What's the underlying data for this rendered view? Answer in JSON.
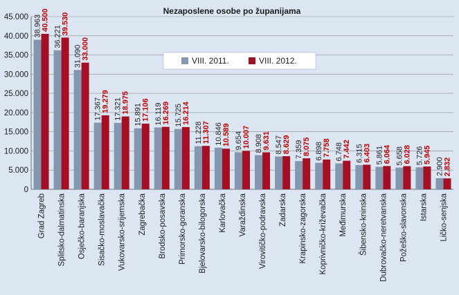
{
  "chart_data": {
    "type": "bar",
    "title": "Nezaposlene osobe po županijama",
    "xlabel": "",
    "ylabel": "",
    "ylim": [
      0,
      45000
    ],
    "y_ticks": [
      "0",
      "5.000",
      "10.000",
      "15.000",
      "20.000",
      "25.000",
      "30.000",
      "35.000",
      "40.000",
      "45.000"
    ],
    "y_tick_values": [
      0,
      5000,
      10000,
      15000,
      20000,
      25000,
      30000,
      35000,
      40000,
      45000
    ],
    "grid": true,
    "legend_position": "top-center",
    "colors": {
      "series_2011": "#8497b0",
      "series_2012": "#a50f23",
      "label_2011": "#1f1f1f",
      "label_2012": "#c00000",
      "background": "#dce6f2"
    },
    "categories": [
      "Grad Zagreb",
      "Splitsko-dalmatinska",
      "Osječko-baranjska",
      "Sisačko-moslavačka",
      "Vukovarsko-srijemska",
      "Zagrebačka",
      "Brodsko-posavska",
      "Primorsko-goranska",
      "Bjelovarsko-bilogorska",
      "Karlovačka",
      "Varaždinska",
      "Virovitičko-podravska",
      "Zadarska",
      "Krapinsko-zagorska",
      "Koprivničko-križevačka",
      "Međimurska",
      "Šibensko-kninska",
      "Dubrovačko-neretvanska",
      "Požeško-slavonska",
      "Istarska",
      "Ličko-senjska"
    ],
    "series": [
      {
        "name": "VIII. 2011.",
        "values": [
          38963,
          36221,
          31090,
          17367,
          17321,
          15891,
          16119,
          15725,
          11228,
          10846,
          9654,
          8908,
          8547,
          7359,
          6898,
          6748,
          6315,
          5861,
          5658,
          5726,
          2900
        ],
        "labels": [
          "38.963",
          "36.221",
          "31.090",
          "17.367",
          "17.321",
          "15.891",
          "16.119",
          "15.725",
          "11.228",
          "10.846",
          "9.654",
          "8.908",
          "8.547",
          "7.359",
          "6.898",
          "6.748",
          "6.315",
          "5.861",
          "5.658",
          "5.726",
          "2.900"
        ]
      },
      {
        "name": "VIII. 2012.",
        "values": [
          40500,
          39530,
          33000,
          19279,
          18975,
          17106,
          16269,
          16214,
          11307,
          10589,
          10007,
          9631,
          8629,
          8075,
          7758,
          7442,
          6403,
          6064,
          6028,
          5945,
          2832
        ],
        "labels": [
          "40.500",
          "39.530",
          "33.000",
          "19.279",
          "18.975",
          "17.106",
          "16.269",
          "16.214",
          "11.307",
          "10.589",
          "10.007",
          "9.631",
          "8.629",
          "8.075",
          "7.758",
          "7.442",
          "6.403",
          "6.064",
          "6.028",
          "5.945",
          "2.832"
        ]
      }
    ]
  }
}
